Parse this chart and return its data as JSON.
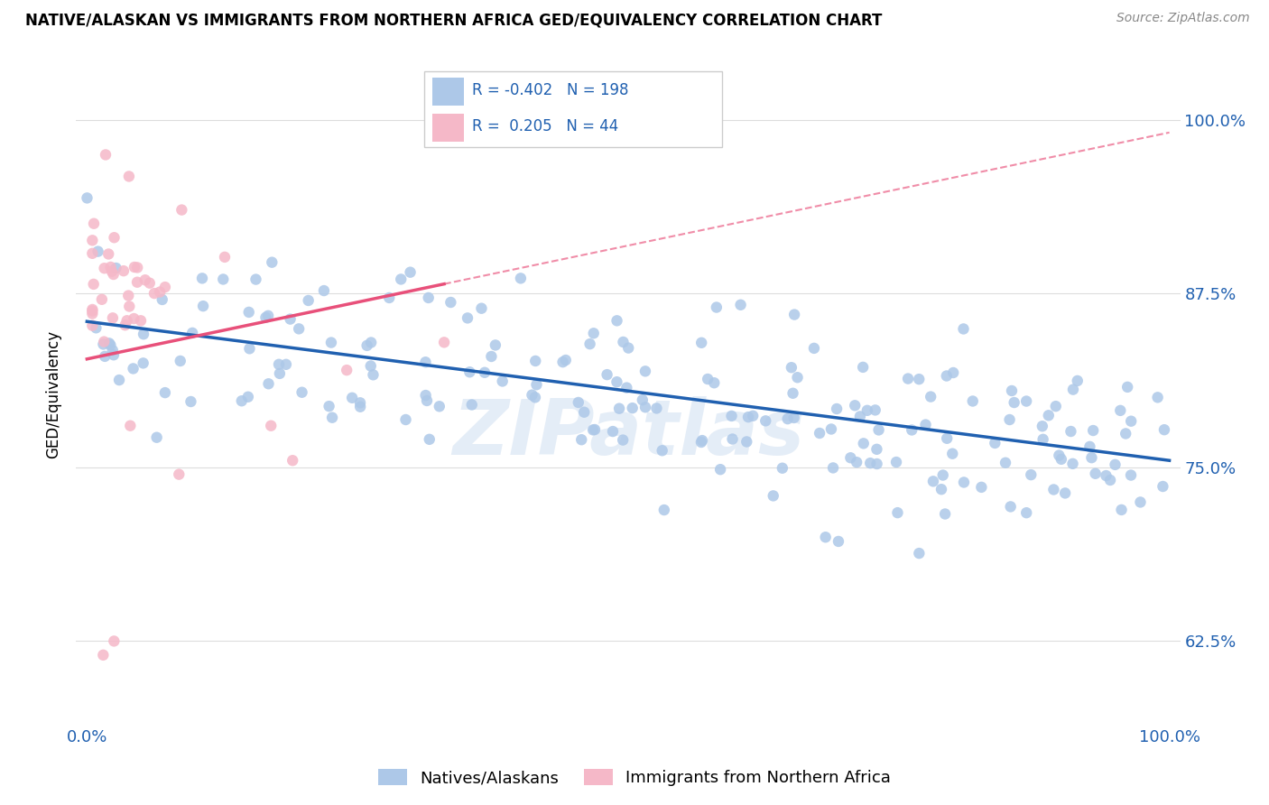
{
  "title": "NATIVE/ALASKAN VS IMMIGRANTS FROM NORTHERN AFRICA GED/EQUIVALENCY CORRELATION CHART",
  "source": "Source: ZipAtlas.com",
  "ylabel": "GED/Equivalency",
  "ytick_labels": [
    "62.5%",
    "75.0%",
    "87.5%",
    "100.0%"
  ],
  "ytick_values": [
    0.625,
    0.75,
    0.875,
    1.0
  ],
  "xlim": [
    -0.01,
    1.01
  ],
  "ylim": [
    0.565,
    1.04
  ],
  "legend_blue_label": "Natives/Alaskans",
  "legend_pink_label": "Immigrants from Northern Africa",
  "blue_R": -0.402,
  "blue_N": 198,
  "pink_R": 0.205,
  "pink_N": 44,
  "blue_color": "#adc8e8",
  "pink_color": "#f5b8c8",
  "blue_line_color": "#2060b0",
  "pink_line_color": "#e8507a",
  "watermark": "ZIPatlas",
  "blue_line_x0": 0.0,
  "blue_line_y0": 0.855,
  "blue_line_x1": 1.0,
  "blue_line_y1": 0.755,
  "pink_line_x0": 0.0,
  "pink_line_y0": 0.828,
  "pink_line_x1": 0.33,
  "pink_line_y1": 0.882,
  "pink_line_dash_x0": 0.33,
  "pink_line_dash_y0": 0.882,
  "pink_line_dash_x1": 1.0,
  "pink_line_dash_y1": 0.991
}
